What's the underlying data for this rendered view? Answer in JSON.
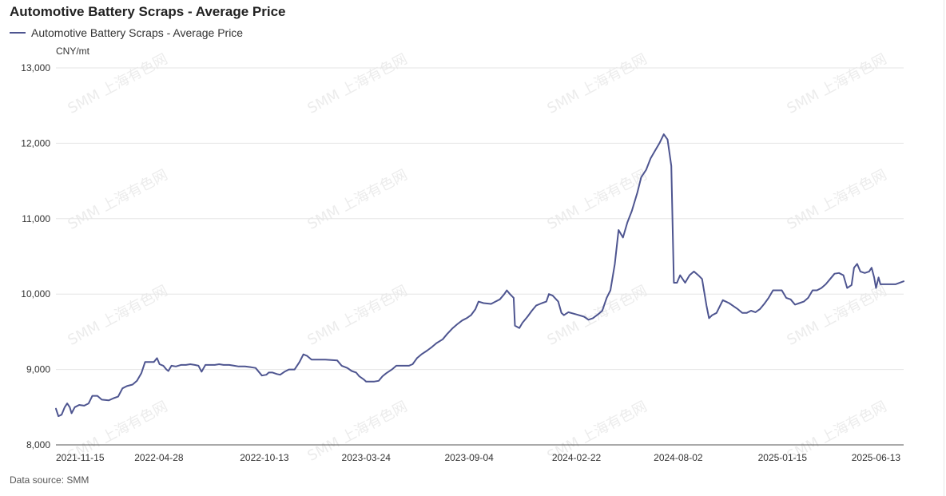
{
  "title": "Automotive Battery Scraps - Average Price",
  "legend_label": "Automotive Battery Scraps - Average Price",
  "unit": "CNY/mt",
  "source_label": "Data source:",
  "source_value": "SMM",
  "watermark": "SMM 上海有色网",
  "colors": {
    "line": "#4e5590",
    "grid": "#e6e6e6",
    "axis": "#555555"
  },
  "chart_data": {
    "type": "line",
    "title": "Automotive Battery Scraps - Average Price",
    "ylabel": "CNY/mt",
    "ylim": [
      8000,
      13000
    ],
    "y_ticks": [
      8000,
      9000,
      10000,
      11000,
      12000,
      13000
    ],
    "y_tick_labels": [
      "8,000",
      "9,000",
      "10,000",
      "11,000",
      "12,000",
      "13,000"
    ],
    "xlim": [
      "2021-11-15",
      "2025-07-27"
    ],
    "x_tick_labels": [
      "2021-11-15",
      "2022-04-28",
      "2022-10-13",
      "2023-03-24",
      "2023-09-04",
      "2024-02-22",
      "2024-08-02",
      "2025-01-15",
      "2025-06-13"
    ],
    "grid": true,
    "legend": "top-left",
    "series": [
      {
        "name": "Automotive Battery Scraps - Average Price",
        "points": [
          [
            "2021-11-15",
            8480
          ],
          [
            "2021-11-19",
            8380
          ],
          [
            "2021-11-24",
            8400
          ],
          [
            "2021-11-29",
            8500
          ],
          [
            "2021-12-03",
            8550
          ],
          [
            "2021-12-07",
            8500
          ],
          [
            "2021-12-10",
            8420
          ],
          [
            "2021-12-15",
            8500
          ],
          [
            "2021-12-22",
            8530
          ],
          [
            "2021-12-30",
            8520
          ],
          [
            "2022-01-06",
            8550
          ],
          [
            "2022-01-12",
            8650
          ],
          [
            "2022-01-20",
            8650
          ],
          [
            "2022-01-27",
            8600
          ],
          [
            "2022-02-07",
            8590
          ],
          [
            "2022-02-15",
            8620
          ],
          [
            "2022-02-22",
            8640
          ],
          [
            "2022-03-01",
            8750
          ],
          [
            "2022-03-08",
            8780
          ],
          [
            "2022-03-17",
            8800
          ],
          [
            "2022-03-24",
            8850
          ],
          [
            "2022-03-31",
            8950
          ],
          [
            "2022-04-06",
            9100
          ],
          [
            "2022-04-13",
            9100
          ],
          [
            "2022-04-20",
            9100
          ],
          [
            "2022-04-25",
            9150
          ],
          [
            "2022-04-29",
            9070
          ],
          [
            "2022-05-05",
            9050
          ],
          [
            "2022-05-10",
            9000
          ],
          [
            "2022-05-13",
            8980
          ],
          [
            "2022-05-18",
            9050
          ],
          [
            "2022-05-25",
            9040
          ],
          [
            "2022-06-02",
            9060
          ],
          [
            "2022-06-10",
            9060
          ],
          [
            "2022-06-17",
            9070
          ],
          [
            "2022-06-24",
            9060
          ],
          [
            "2022-06-30",
            9050
          ],
          [
            "2022-07-05",
            8970
          ],
          [
            "2022-07-11",
            9060
          ],
          [
            "2022-07-18",
            9060
          ],
          [
            "2022-07-26",
            9060
          ],
          [
            "2022-08-02",
            9070
          ],
          [
            "2022-08-09",
            9060
          ],
          [
            "2022-08-18",
            9060
          ],
          [
            "2022-08-26",
            9050
          ],
          [
            "2022-09-02",
            9040
          ],
          [
            "2022-09-12",
            9040
          ],
          [
            "2022-09-22",
            9030
          ],
          [
            "2022-09-29",
            9020
          ],
          [
            "2022-10-09",
            8920
          ],
          [
            "2022-10-16",
            8930
          ],
          [
            "2022-10-20",
            8960
          ],
          [
            "2022-10-26",
            8960
          ],
          [
            "2022-11-02",
            8940
          ],
          [
            "2022-11-07",
            8930
          ],
          [
            "2022-11-14",
            8970
          ],
          [
            "2022-11-21",
            9000
          ],
          [
            "2022-11-30",
            9000
          ],
          [
            "2022-12-08",
            9100
          ],
          [
            "2022-12-14",
            9200
          ],
          [
            "2022-12-20",
            9180
          ],
          [
            "2022-12-27",
            9130
          ],
          [
            "2023-01-05",
            9130
          ],
          [
            "2023-01-18",
            9130
          ],
          [
            "2023-02-06",
            9120
          ],
          [
            "2023-02-13",
            9050
          ],
          [
            "2023-02-22",
            9020
          ],
          [
            "2023-03-01",
            8980
          ],
          [
            "2023-03-08",
            8960
          ],
          [
            "2023-03-13",
            8910
          ],
          [
            "2023-03-20",
            8870
          ],
          [
            "2023-03-24",
            8840
          ],
          [
            "2023-03-29",
            8840
          ],
          [
            "2023-04-06",
            8840
          ],
          [
            "2023-04-13",
            8850
          ],
          [
            "2023-04-19",
            8910
          ],
          [
            "2023-04-25",
            8950
          ],
          [
            "2023-05-04",
            9000
          ],
          [
            "2023-05-11",
            9050
          ],
          [
            "2023-05-20",
            9050
          ],
          [
            "2023-05-31",
            9050
          ],
          [
            "2023-06-06",
            9070
          ],
          [
            "2023-06-13",
            9150
          ],
          [
            "2023-06-20",
            9200
          ],
          [
            "2023-06-29",
            9250
          ],
          [
            "2023-07-07",
            9300
          ],
          [
            "2023-07-14",
            9350
          ],
          [
            "2023-07-24",
            9400
          ],
          [
            "2023-07-31",
            9470
          ],
          [
            "2023-08-09",
            9550
          ],
          [
            "2023-08-16",
            9600
          ],
          [
            "2023-08-24",
            9650
          ],
          [
            "2023-08-31",
            9680
          ],
          [
            "2023-09-07",
            9720
          ],
          [
            "2023-09-14",
            9800
          ],
          [
            "2023-09-19",
            9900
          ],
          [
            "2023-09-27",
            9880
          ],
          [
            "2023-10-09",
            9870
          ],
          [
            "2023-10-16",
            9900
          ],
          [
            "2023-10-23",
            9930
          ],
          [
            "2023-10-30",
            10000
          ],
          [
            "2023-11-03",
            10050
          ],
          [
            "2023-11-08",
            10000
          ],
          [
            "2023-11-14",
            9950
          ],
          [
            "2023-11-16",
            9580
          ],
          [
            "2023-11-23",
            9550
          ],
          [
            "2023-11-28",
            9620
          ],
          [
            "2023-12-06",
            9700
          ],
          [
            "2023-12-13",
            9780
          ],
          [
            "2023-12-20",
            9850
          ],
          [
            "2023-12-29",
            9880
          ],
          [
            "2024-01-05",
            9900
          ],
          [
            "2024-01-09",
            10000
          ],
          [
            "2024-01-15",
            9980
          ],
          [
            "2024-01-24",
            9900
          ],
          [
            "2024-01-29",
            9750
          ],
          [
            "2024-02-02",
            9720
          ],
          [
            "2024-02-09",
            9760
          ],
          [
            "2024-02-22",
            9730
          ],
          [
            "2024-03-05",
            9700
          ],
          [
            "2024-03-12",
            9660
          ],
          [
            "2024-03-19",
            9680
          ],
          [
            "2024-03-27",
            9730
          ],
          [
            "2024-04-03",
            9780
          ],
          [
            "2024-04-10",
            9950
          ],
          [
            "2024-04-16",
            10050
          ],
          [
            "2024-04-23",
            10400
          ],
          [
            "2024-04-29",
            10850
          ],
          [
            "2024-05-06",
            10750
          ],
          [
            "2024-05-13",
            10950
          ],
          [
            "2024-05-20",
            11100
          ],
          [
            "2024-05-29",
            11350
          ],
          [
            "2024-06-04",
            11550
          ],
          [
            "2024-06-12",
            11650
          ],
          [
            "2024-06-19",
            11800
          ],
          [
            "2024-06-26",
            11900
          ],
          [
            "2024-07-03",
            12000
          ],
          [
            "2024-07-10",
            12120
          ],
          [
            "2024-07-16",
            12050
          ],
          [
            "2024-07-22",
            11700
          ],
          [
            "2024-07-26",
            10150
          ],
          [
            "2024-07-31",
            10150
          ],
          [
            "2024-08-05",
            10250
          ],
          [
            "2024-08-13",
            10150
          ],
          [
            "2024-08-20",
            10250
          ],
          [
            "2024-08-27",
            10300
          ],
          [
            "2024-09-03",
            10250
          ],
          [
            "2024-09-09",
            10200
          ],
          [
            "2024-09-16",
            9850
          ],
          [
            "2024-09-20",
            9680
          ],
          [
            "2024-09-25",
            9720
          ],
          [
            "2024-10-02",
            9750
          ],
          [
            "2024-10-12",
            9920
          ],
          [
            "2024-10-22",
            9880
          ],
          [
            "2024-10-29",
            9840
          ],
          [
            "2024-11-05",
            9800
          ],
          [
            "2024-11-12",
            9750
          ],
          [
            "2024-11-19",
            9750
          ],
          [
            "2024-11-26",
            9780
          ],
          [
            "2024-12-03",
            9760
          ],
          [
            "2024-12-10",
            9800
          ],
          [
            "2024-12-17",
            9870
          ],
          [
            "2024-12-24",
            9950
          ],
          [
            "2024-12-31",
            10050
          ],
          [
            "2025-01-07",
            10050
          ],
          [
            "2025-01-14",
            10050
          ],
          [
            "2025-01-21",
            9950
          ],
          [
            "2025-01-28",
            9930
          ],
          [
            "2025-02-04",
            9860
          ],
          [
            "2025-02-11",
            9880
          ],
          [
            "2025-02-18",
            9900
          ],
          [
            "2025-02-25",
            9950
          ],
          [
            "2025-03-04",
            10050
          ],
          [
            "2025-03-11",
            10050
          ],
          [
            "2025-03-18",
            10080
          ],
          [
            "2025-03-25",
            10130
          ],
          [
            "2025-04-01",
            10200
          ],
          [
            "2025-04-08",
            10270
          ],
          [
            "2025-04-15",
            10280
          ],
          [
            "2025-04-22",
            10250
          ],
          [
            "2025-04-28",
            10080
          ],
          [
            "2025-05-05",
            10120
          ],
          [
            "2025-05-09",
            10350
          ],
          [
            "2025-05-14",
            10400
          ],
          [
            "2025-05-19",
            10300
          ],
          [
            "2025-05-26",
            10280
          ],
          [
            "2025-06-02",
            10300
          ],
          [
            "2025-06-06",
            10350
          ],
          [
            "2025-06-10",
            10220
          ],
          [
            "2025-06-13",
            10080
          ],
          [
            "2025-06-17",
            10220
          ],
          [
            "2025-06-20",
            10130
          ],
          [
            "2025-07-01",
            10130
          ],
          [
            "2025-07-14",
            10130
          ],
          [
            "2025-07-27",
            10170
          ]
        ]
      }
    ]
  }
}
